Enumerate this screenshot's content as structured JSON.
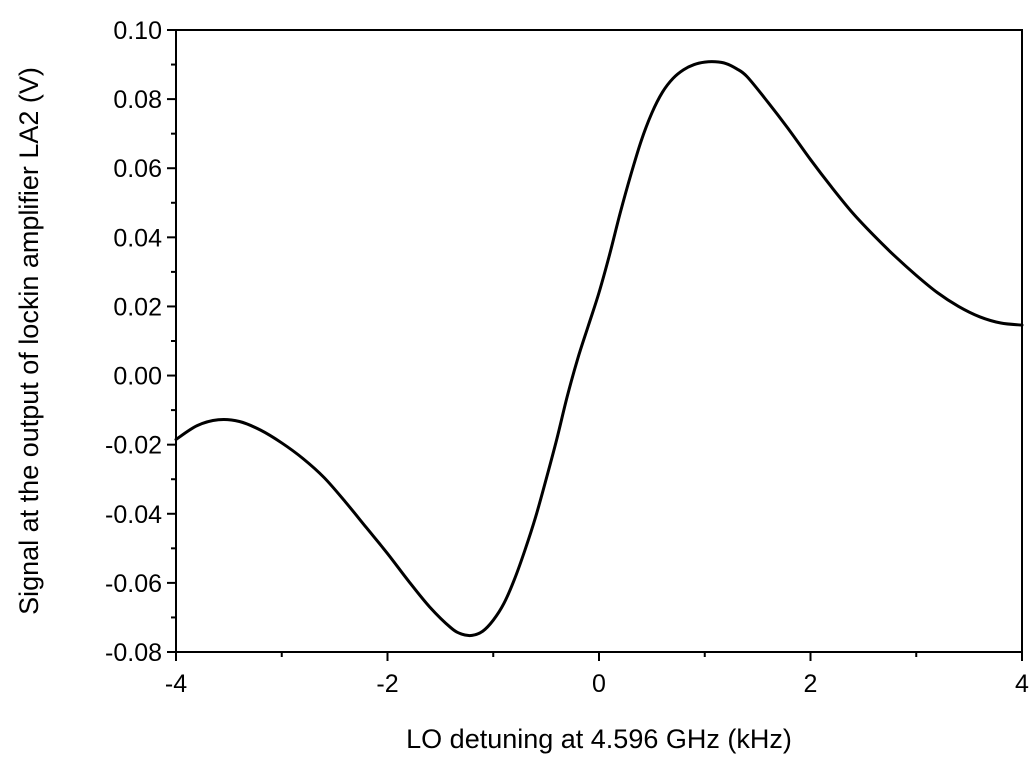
{
  "chart_data": {
    "type": "line",
    "xlabel": "LO detuning at 4.596 GHz (kHz)",
    "ylabel": "Signal at the output of lockin amplifier LA2 (V)",
    "xlim": [
      -4,
      4
    ],
    "ylim": [
      -0.08,
      0.1
    ],
    "xticks": [
      "-4",
      "-2",
      "0",
      "2",
      "4"
    ],
    "yticks": [
      "-0.08",
      "-0.06",
      "-0.04",
      "-0.02",
      "0.00",
      "0.02",
      "0.04",
      "0.06",
      "0.08",
      "0.10"
    ],
    "grid": false,
    "series": [
      {
        "color": "#000000",
        "x": [
          -4.0,
          -3.8,
          -3.6,
          -3.4,
          -3.2,
          -3.0,
          -2.8,
          -2.6,
          -2.4,
          -2.2,
          -2.0,
          -1.8,
          -1.6,
          -1.4,
          -1.3,
          -1.2,
          -1.1,
          -1.0,
          -0.9,
          -0.8,
          -0.7,
          -0.6,
          -0.5,
          -0.4,
          -0.3,
          -0.2,
          -0.1,
          0.0,
          0.1,
          0.2,
          0.3,
          0.4,
          0.5,
          0.6,
          0.7,
          0.8,
          0.9,
          1.0,
          1.1,
          1.2,
          1.3,
          1.4,
          1.6,
          1.8,
          2.0,
          2.2,
          2.4,
          2.6,
          2.8,
          3.0,
          3.2,
          3.4,
          3.6,
          3.8,
          4.0
        ],
        "y": [
          -0.0185,
          -0.0145,
          -0.0128,
          -0.0133,
          -0.0158,
          -0.0195,
          -0.024,
          -0.0295,
          -0.0365,
          -0.044,
          -0.0515,
          -0.0595,
          -0.067,
          -0.073,
          -0.0748,
          -0.0752,
          -0.074,
          -0.0708,
          -0.066,
          -0.059,
          -0.0505,
          -0.041,
          -0.03,
          -0.0185,
          -0.006,
          0.005,
          0.0145,
          0.024,
          0.035,
          0.047,
          0.058,
          0.068,
          0.076,
          0.082,
          0.086,
          0.0885,
          0.09,
          0.0907,
          0.0908,
          0.0903,
          0.0888,
          0.0865,
          0.079,
          0.071,
          0.0625,
          0.0545,
          0.047,
          0.0405,
          0.0345,
          0.029,
          0.024,
          0.02,
          0.017,
          0.0152,
          0.0146
        ]
      }
    ]
  }
}
